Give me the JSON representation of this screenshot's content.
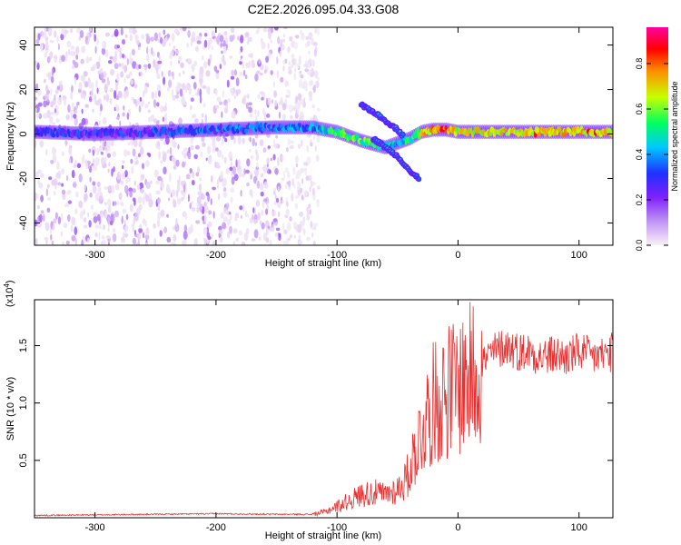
{
  "chart_data": [
    {
      "type": "heatmap",
      "title": "C2E2.2026.095.04.33.G08",
      "xlabel": "Height of straight line (km)",
      "ylabel": "Frequency (Hz)",
      "xlim": [
        -350,
        128
      ],
      "ylim": [
        -50,
        48
      ],
      "xticks": [
        -300,
        -200,
        -100,
        0,
        100
      ],
      "yticks": [
        -40,
        -20,
        0,
        20,
        40
      ],
      "colorbar": {
        "label": "Normalized spectral amplitude",
        "range": [
          0,
          0.96
        ],
        "ticks": [
          0.0,
          0.2,
          0.4,
          0.6,
          0.8
        ],
        "colors": [
          "#f3f3f3",
          "#e8cff7",
          "#b98af3",
          "#8020ff",
          "#2030ff",
          "#00c8ff",
          "#00ff60",
          "#c8ff00",
          "#ff8c00",
          "#ff0000",
          "#ff00a0"
        ]
      },
      "ridge": {
        "x": [
          -350,
          -300,
          -250,
          -200,
          -150,
          -120,
          -100,
          -80,
          -60,
          -50,
          -40,
          -30,
          -20,
          -10,
          0,
          50,
          100,
          128
        ],
        "freq": [
          1,
          0,
          1,
          2,
          3,
          3,
          1,
          -3,
          -6,
          -4,
          -2,
          1,
          2,
          2,
          1,
          1,
          1,
          1
        ],
        "amplitude": [
          0.35,
          0.35,
          0.38,
          0.4,
          0.42,
          0.45,
          0.6,
          0.6,
          0.55,
          0.5,
          0.55,
          0.7,
          0.8,
          0.85,
          0.7,
          0.72,
          0.75,
          0.7
        ]
      },
      "branches": [
        {
          "x": [
            -80,
            -70,
            -60,
            -50,
            -45
          ],
          "freq": [
            13,
            10,
            6,
            2,
            -1
          ]
        },
        {
          "x": [
            -70,
            -60,
            -50,
            -42,
            -38,
            -32
          ],
          "freq": [
            -2,
            -6,
            -10,
            -15,
            -18,
            -20
          ]
        }
      ],
      "noise_region": {
        "x": [
          -350,
          -130
        ],
        "freq": [
          -50,
          48
        ]
      }
    },
    {
      "type": "line",
      "title": "",
      "xlabel": "Height of straight line (km)",
      "ylabel": "SNR (10 * v/v)",
      "multiplier_label": "(x10",
      "multiplier_exp": "4",
      "xlim": [
        -350,
        128
      ],
      "ylim": [
        0,
        1.9
      ],
      "xticks": [
        -300,
        -200,
        -100,
        0,
        100
      ],
      "yticks": [
        0.5,
        1.0,
        1.5
      ],
      "ytick_labels": [
        "0.5",
        "1.0",
        "1.5"
      ],
      "series_color": "#e83030",
      "series": [
        {
          "name": "SNR",
          "x": [
            -350,
            -300,
            -250,
            -200,
            -150,
            -120,
            -110,
            -100,
            -90,
            -80,
            -70,
            -60,
            -50,
            -45,
            -40,
            -38,
            -35,
            -30,
            -25,
            -20,
            -10,
            0,
            10,
            20,
            30,
            40,
            50,
            60,
            70,
            80,
            90,
            100,
            110,
            120,
            128
          ],
          "y": [
            0.02,
            0.025,
            0.03,
            0.035,
            0.03,
            0.03,
            0.05,
            0.1,
            0.15,
            0.2,
            0.22,
            0.2,
            0.25,
            0.3,
            0.4,
            0.5,
            0.6,
            0.75,
            0.9,
            1.0,
            1.1,
            1.15,
            1.25,
            1.35,
            1.45,
            1.5,
            1.45,
            1.45,
            1.4,
            1.42,
            1.4,
            1.45,
            1.4,
            1.42,
            1.45
          ]
        }
      ]
    }
  ]
}
